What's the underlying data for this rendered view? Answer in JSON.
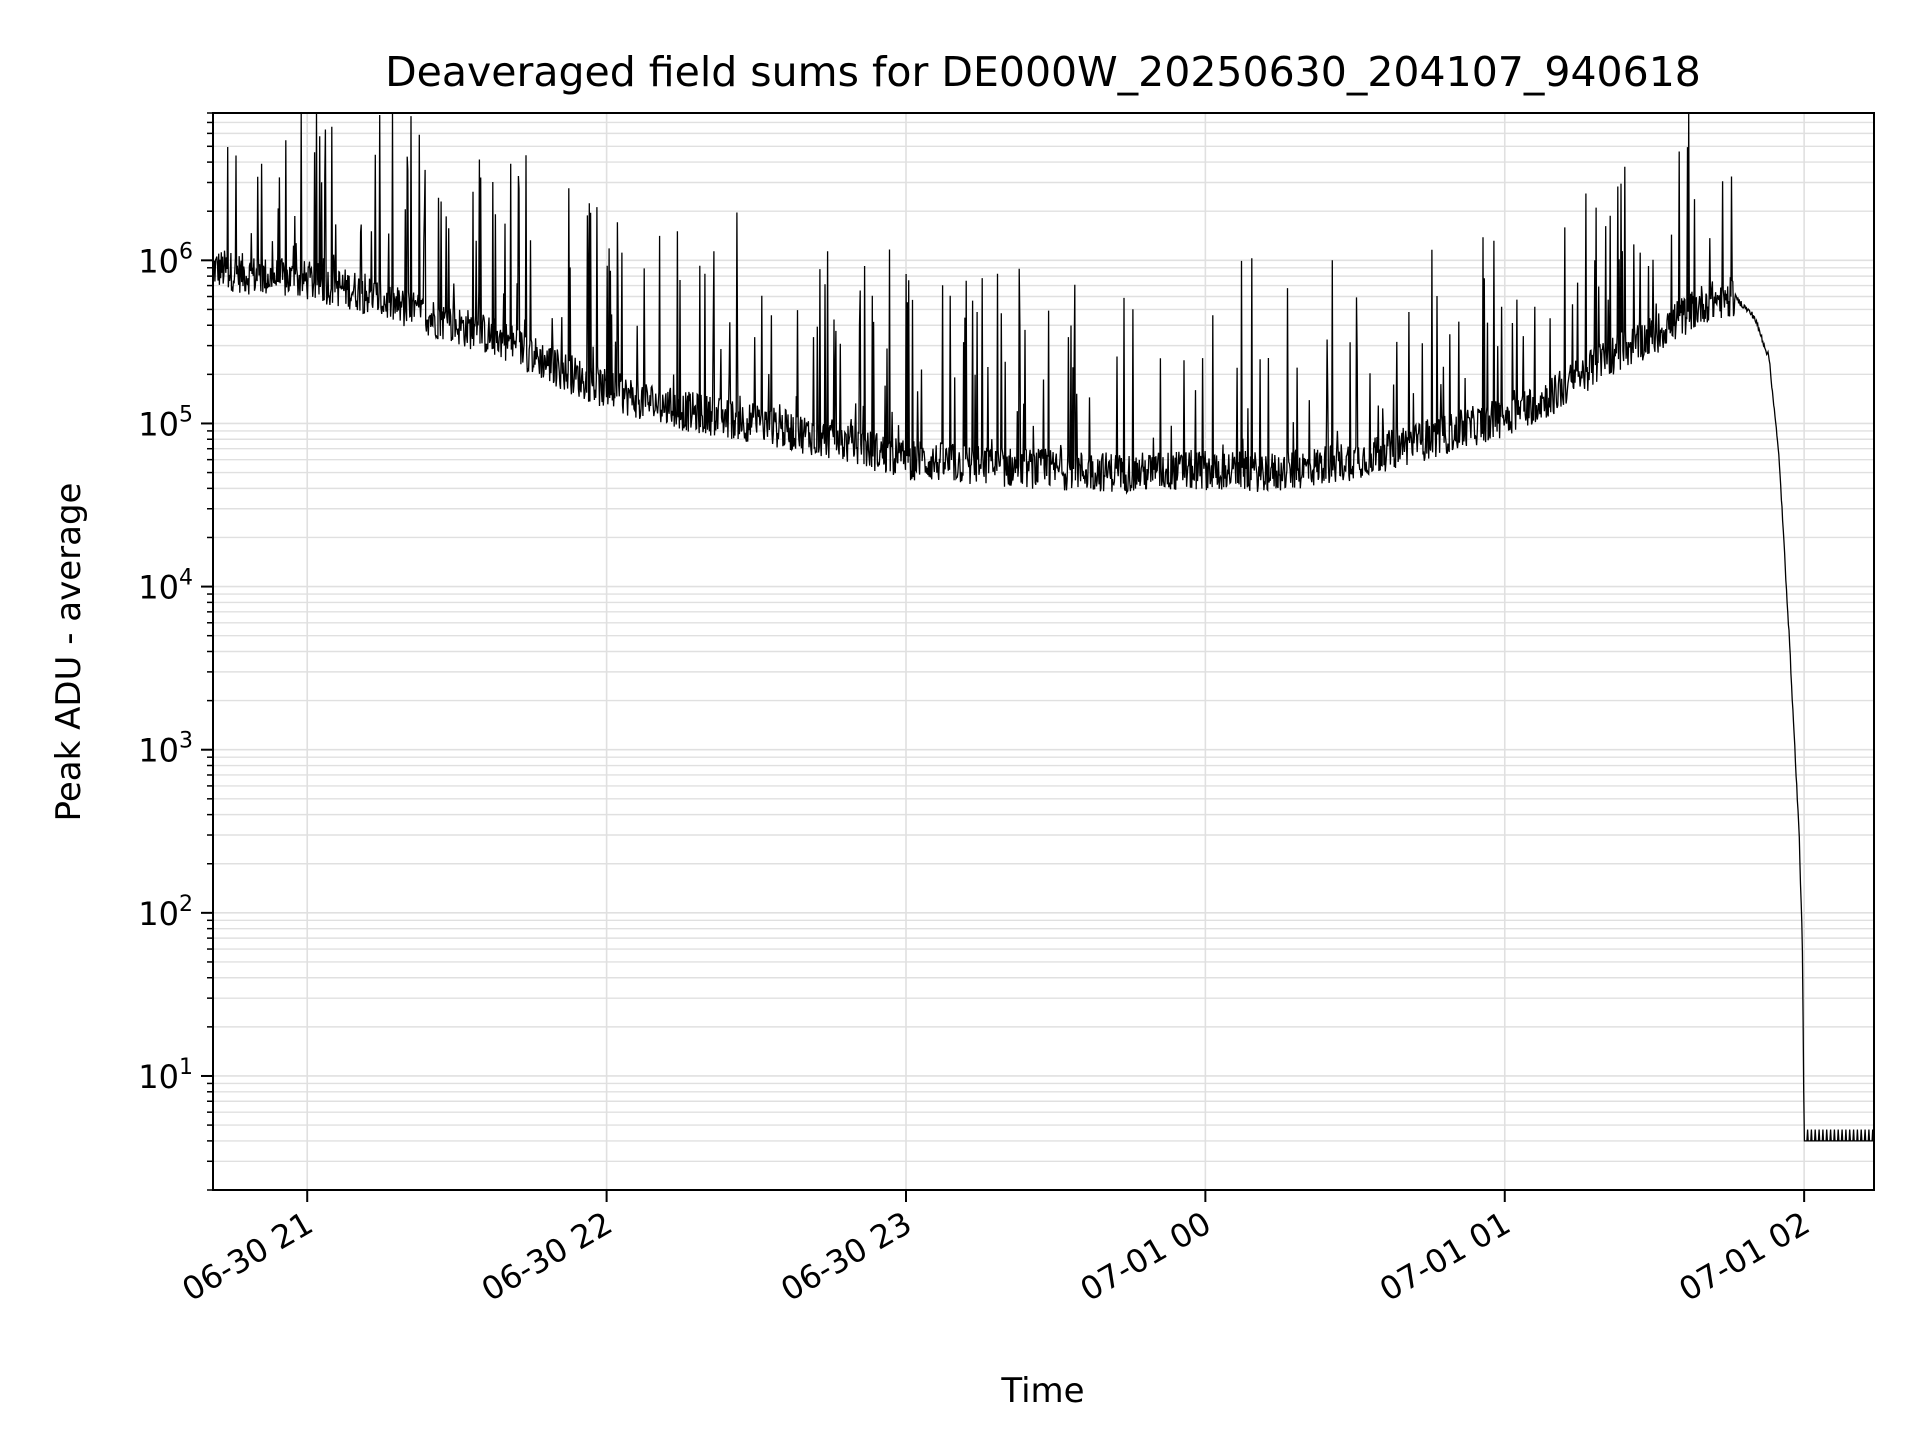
{
  "chart_data": {
    "type": "line",
    "title": "Deaveraged field sums for DE000W_20250630_204107_940618",
    "xlabel": "Time",
    "ylabel": "Peak ADU - average",
    "yscale": "log",
    "ylim": [
      2,
      8000000
    ],
    "xlim": [
      "2025-06-30T20:41:07",
      "2025-07-01T02:14:00"
    ],
    "grid": true,
    "line_color": "#000000",
    "grid_color": "#e0e0e0",
    "x_ticks": [
      {
        "value": "2025-06-30T21:00:00",
        "label": "06-30 21"
      },
      {
        "value": "2025-06-30T22:00:00",
        "label": "06-30 22"
      },
      {
        "value": "2025-06-30T23:00:00",
        "label": "06-30 23"
      },
      {
        "value": "2025-07-01T00:00:00",
        "label": "07-01 00"
      },
      {
        "value": "2025-07-01T01:00:00",
        "label": "07-01 01"
      },
      {
        "value": "2025-07-01T02:00:00",
        "label": "07-01 02"
      }
    ],
    "y_ticks": [
      {
        "value": 10,
        "base": "10",
        "exp": "1"
      },
      {
        "value": 100,
        "base": "10",
        "exp": "2"
      },
      {
        "value": 1000,
        "base": "10",
        "exp": "3"
      },
      {
        "value": 10000,
        "base": "10",
        "exp": "4"
      },
      {
        "value": 100000,
        "base": "10",
        "exp": "5"
      },
      {
        "value": 1000000,
        "base": "10",
        "exp": "6"
      }
    ],
    "series": [
      {
        "x": [
          "2025-06-30T20:41:07",
          "2025-06-30T20:50:00",
          "2025-06-30T21:00:00",
          "2025-06-30T21:10:00",
          "2025-06-30T21:20:00",
          "2025-06-30T21:30:00",
          "2025-06-30T21:40:00",
          "2025-06-30T21:50:00",
          "2025-06-30T22:00:00",
          "2025-06-30T22:15:00",
          "2025-06-30T22:30:00",
          "2025-06-30T22:45:00",
          "2025-06-30T23:00:00",
          "2025-06-30T23:15:00",
          "2025-06-30T23:30:00",
          "2025-06-30T23:45:00",
          "2025-07-01T00:00:00",
          "2025-07-01T00:15:00",
          "2025-07-01T00:30:00",
          "2025-07-01T00:45:00",
          "2025-07-01T01:00:00",
          "2025-07-01T01:10:00",
          "2025-07-01T01:20:00",
          "2025-07-01T01:30:00",
          "2025-07-01T01:40:00",
          "2025-07-01T01:46:00",
          "2025-07-01T01:50:00",
          "2025-07-01T01:53:00",
          "2025-07-01T01:55:00",
          "2025-07-01T01:57:00",
          "2025-07-01T01:59:00",
          "2025-07-01T01:59:40",
          "2025-07-01T02:00:00",
          "2025-07-01T02:07:00",
          "2025-07-01T02:14:00"
        ],
        "values": [
          900000,
          800000,
          750000,
          650000,
          500000,
          400000,
          320000,
          220000,
          160000,
          120000,
          100000,
          80000,
          60000,
          55000,
          52000,
          50000,
          52000,
          50000,
          60000,
          80000,
          110000,
          150000,
          250000,
          350000,
          550000,
          600000,
          450000,
          250000,
          60000,
          5000,
          300,
          60,
          4,
          4,
          4
        ]
      }
    ]
  }
}
